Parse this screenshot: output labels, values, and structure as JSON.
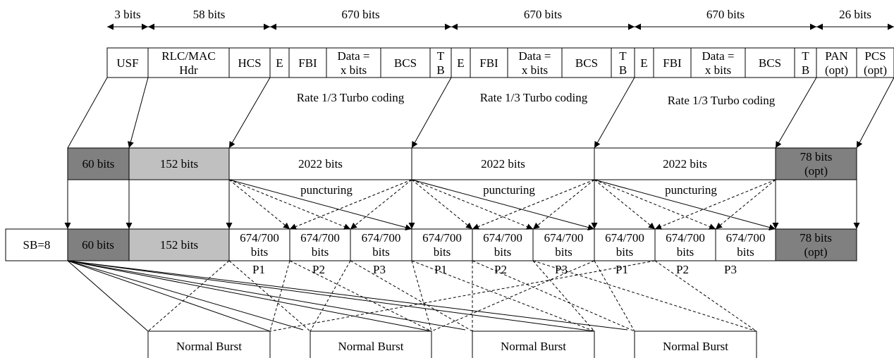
{
  "colors": {
    "dark_gray": "#808080",
    "light_gray": "#c0c0c0",
    "white": "#ffffff",
    "line": "#000000"
  },
  "bit_widths": [
    "3 bits",
    "58 bits",
    "670 bits",
    "670 bits",
    "670 bits",
    "26 bits"
  ],
  "header_fields": [
    [
      "USF"
    ],
    [
      "RLC/MAC",
      "Hdr"
    ],
    [
      "HCS"
    ],
    [
      "E"
    ],
    [
      "FBI"
    ],
    [
      "Data =",
      "x bits"
    ],
    [
      "BCS"
    ],
    [
      "T",
      "B"
    ],
    [
      "E"
    ],
    [
      "FBI"
    ],
    [
      "Data =",
      "x bits"
    ],
    [
      "BCS"
    ],
    [
      "T",
      "B"
    ],
    [
      "E"
    ],
    [
      "FBI"
    ],
    [
      "Data =",
      "x bits"
    ],
    [
      "BCS"
    ],
    [
      "T",
      "B"
    ],
    [
      "PAN",
      "(opt)"
    ],
    [
      "PCS",
      "(opt)"
    ]
  ],
  "turbo_label": "Rate 1/3 Turbo coding",
  "coded_blocks": [
    [
      "60 bits"
    ],
    [
      "152 bits"
    ],
    [
      "2022 bits"
    ],
    [
      "2022 bits"
    ],
    [
      "2022 bits"
    ],
    [
      "78 bits",
      "(opt)"
    ]
  ],
  "puncturing_label": "puncturing",
  "burst_row": {
    "sb_label": "SB=8",
    "usf_block": "60 bits",
    "hdr_block": "152 bits",
    "punctured_block": [
      "674/700",
      "bits"
    ],
    "tail_block": [
      "78 bits",
      "(opt)"
    ]
  },
  "p_labels": [
    "P1",
    "P2",
    "P3",
    "P1",
    "P2",
    "P3",
    "P1",
    "P2",
    "P3"
  ],
  "burst_label": "Normal Burst",
  "burst_count": 4
}
